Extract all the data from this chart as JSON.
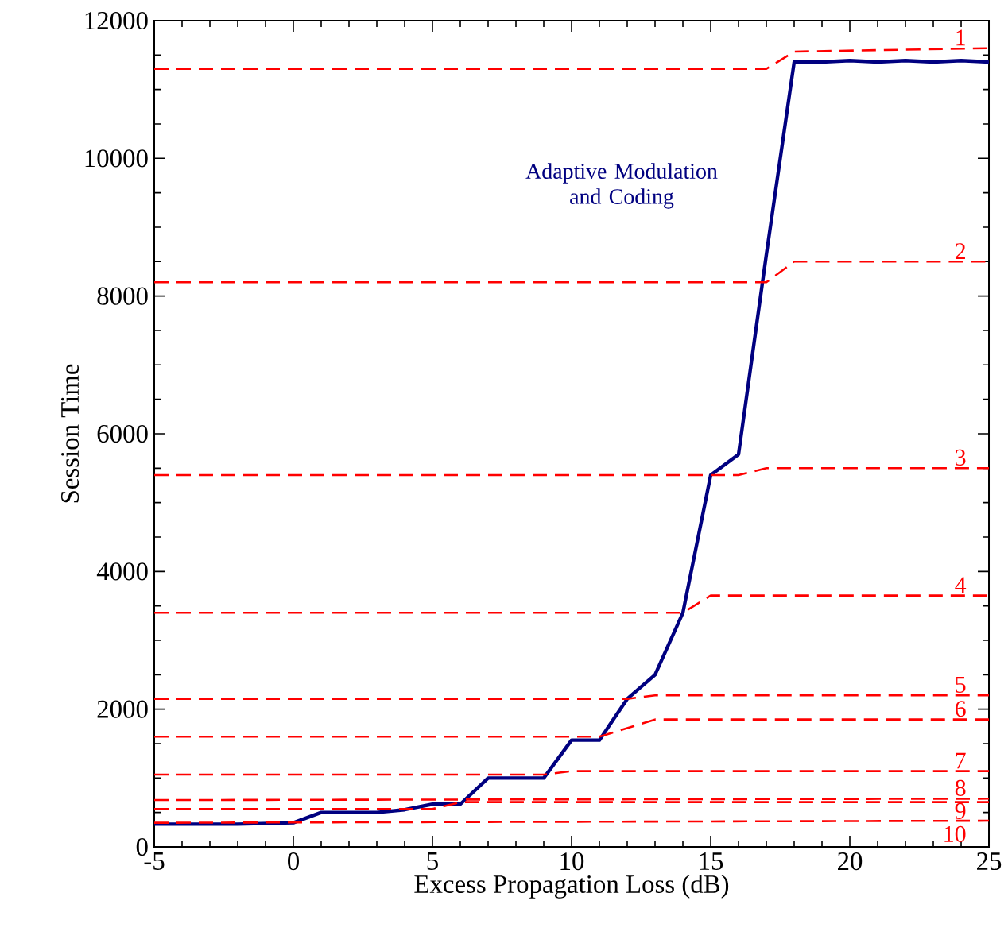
{
  "chart_data": {
    "type": "line",
    "xlabel": "Excess Propagation Loss (dB)",
    "ylabel": "Session Time",
    "xlim": [
      -5,
      25
    ],
    "ylim": [
      0,
      12000
    ],
    "xticks": [
      -5,
      0,
      5,
      10,
      15,
      20,
      25
    ],
    "yticks": [
      0,
      2000,
      4000,
      6000,
      8000,
      10000,
      12000
    ],
    "series": [
      {
        "name": "Adaptive Modulation and Coding",
        "color": "#000080",
        "line_style": "solid",
        "x": [
          -5,
          -4,
          -3,
          -2,
          -1,
          0,
          1,
          2,
          3,
          4,
          5,
          6,
          7,
          8,
          9,
          10,
          11,
          12,
          13,
          14,
          15,
          16,
          17,
          18,
          19,
          20,
          21,
          22,
          23,
          24,
          25
        ],
        "values": [
          330,
          330,
          330,
          330,
          340,
          350,
          500,
          500,
          500,
          540,
          620,
          620,
          1000,
          1000,
          1000,
          1550,
          1550,
          2150,
          2500,
          3400,
          5400,
          5700,
          8600,
          11400,
          11400,
          11420,
          11400,
          11420,
          11400,
          11420,
          11400
        ]
      },
      {
        "name": "1",
        "color": "#ff0000",
        "line_style": "dashed",
        "x": [
          -5,
          17,
          18,
          25
        ],
        "values": [
          11300,
          11300,
          11550,
          11600
        ]
      },
      {
        "name": "2",
        "color": "#ff0000",
        "line_style": "dashed",
        "x": [
          -5,
          17,
          18,
          25
        ],
        "values": [
          8200,
          8200,
          8500,
          8500
        ]
      },
      {
        "name": "3",
        "color": "#ff0000",
        "line_style": "dashed",
        "x": [
          -5,
          16,
          17,
          25
        ],
        "values": [
          5400,
          5400,
          5500,
          5500
        ]
      },
      {
        "name": "4",
        "color": "#ff0000",
        "line_style": "dashed",
        "x": [
          -5,
          14,
          15,
          25
        ],
        "values": [
          3400,
          3400,
          3650,
          3650
        ]
      },
      {
        "name": "5",
        "color": "#ff0000",
        "line_style": "dashed",
        "x": [
          -5,
          12,
          13,
          25
        ],
        "values": [
          2150,
          2150,
          2200,
          2200
        ]
      },
      {
        "name": "6",
        "color": "#ff0000",
        "line_style": "dashed",
        "x": [
          -5,
          11,
          13,
          25
        ],
        "values": [
          1600,
          1600,
          1850,
          1850
        ]
      },
      {
        "name": "7",
        "color": "#ff0000",
        "line_style": "dashed",
        "x": [
          -5,
          9,
          10,
          25
        ],
        "values": [
          1050,
          1050,
          1100,
          1100
        ]
      },
      {
        "name": "8",
        "color": "#ff0000",
        "line_style": "dashed",
        "x": [
          -5,
          25
        ],
        "values": [
          680,
          700
        ]
      },
      {
        "name": "9",
        "color": "#ff0000",
        "line_style": "dashed",
        "x": [
          -5,
          5,
          6,
          25
        ],
        "values": [
          550,
          550,
          650,
          650
        ]
      },
      {
        "name": "10",
        "color": "#ff0000",
        "line_style": "dashed",
        "x": [
          -5,
          25
        ],
        "values": [
          350,
          380
        ]
      }
    ]
  }
}
